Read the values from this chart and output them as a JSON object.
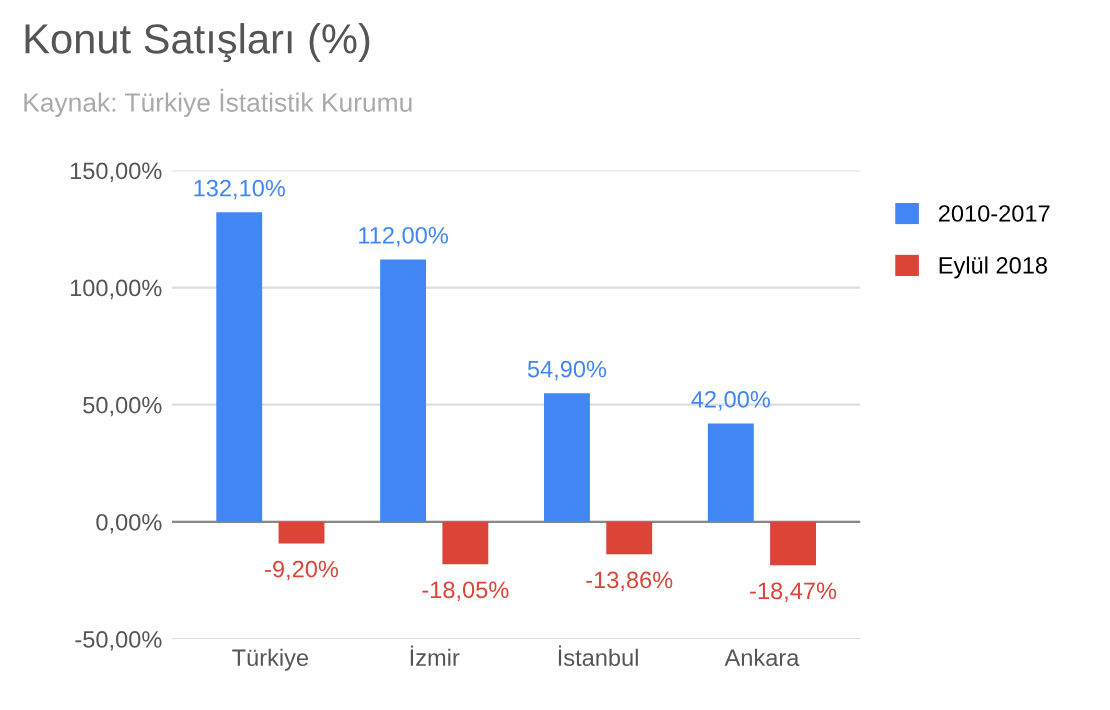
{
  "chart_data": {
    "type": "bar",
    "title": "Konut Satışları (%)",
    "subtitle": "Kaynak: Türkiye İstatistik Kurumu",
    "categories": [
      "Türkiye",
      "İzmir",
      "İstanbul",
      "Ankara"
    ],
    "series": [
      {
        "name": "2010-2017",
        "color": "#4285f4",
        "values": [
          132.1,
          112.0,
          54.9,
          42.0
        ],
        "value_labels": [
          "132,10%",
          "112,00%",
          "54,90%",
          "42,00%"
        ]
      },
      {
        "name": "Eylül 2018",
        "color": "#db4437",
        "values": [
          -9.2,
          -18.05,
          -13.86,
          -18.47
        ],
        "value_labels": [
          "-9,20%",
          "-18,05%",
          "-13,86%",
          "-18,47%"
        ]
      }
    ],
    "ylim": [
      -50,
      150
    ],
    "yticks": [
      {
        "value": -50,
        "label": "-50,00%"
      },
      {
        "value": 0,
        "label": "0,00%"
      },
      {
        "value": 50,
        "label": "50,00%"
      },
      {
        "value": 100,
        "label": "100,00%"
      },
      {
        "value": 150,
        "label": "150,00%"
      }
    ],
    "grid": "y",
    "legend": "right"
  }
}
